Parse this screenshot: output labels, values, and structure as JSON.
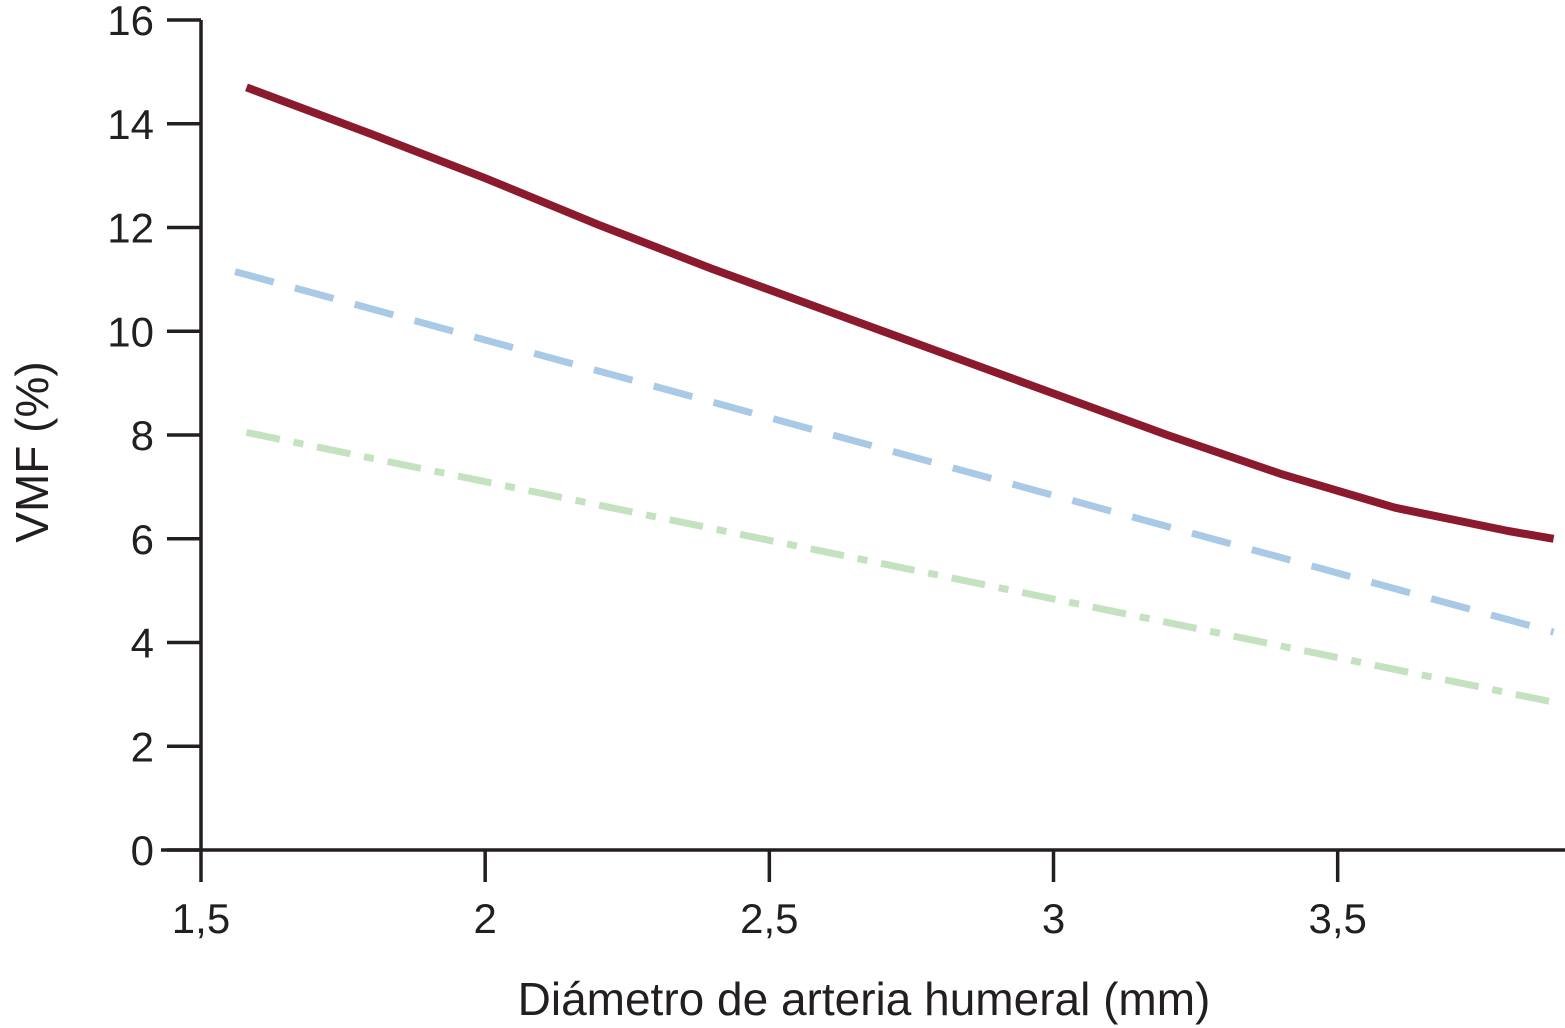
{
  "chart_data": {
    "type": "line",
    "title": "",
    "xlabel": "Diámetro de arteria humeral (mm)",
    "ylabel": "VMF (%)",
    "xlim": [
      1.5,
      3.9
    ],
    "ylim": [
      0,
      16
    ],
    "x_ticks": [
      1.5,
      2,
      2.5,
      3,
      3.5
    ],
    "x_tick_labels": [
      "1,5",
      "2",
      "2,5",
      "3",
      "3,5"
    ],
    "y_ticks": [
      0,
      2,
      4,
      6,
      8,
      10,
      12,
      14,
      16
    ],
    "y_tick_labels": [
      "0",
      "2",
      "4",
      "6",
      "8",
      "10",
      "12",
      "14",
      "16"
    ],
    "grid": false,
    "legend": "none",
    "series": [
      {
        "style": "solid",
        "color": "#8b1a2e",
        "x": [
          1.58,
          1.8,
          2.0,
          2.2,
          2.4,
          2.6,
          2.8,
          3.0,
          3.2,
          3.4,
          3.6,
          3.8,
          3.88
        ],
        "y": [
          14.7,
          13.8,
          12.95,
          12.05,
          11.2,
          10.4,
          9.6,
          8.8,
          8.0,
          7.25,
          6.6,
          6.15,
          6.0
        ]
      },
      {
        "style": "dashed",
        "color": "#a9c9e6",
        "x": [
          1.56,
          3.88
        ],
        "y": [
          11.15,
          4.2
        ]
      },
      {
        "style": "dash-dot",
        "color": "#c5e2c0",
        "x": [
          1.58,
          3.88
        ],
        "y": [
          8.05,
          2.85
        ]
      }
    ]
  }
}
